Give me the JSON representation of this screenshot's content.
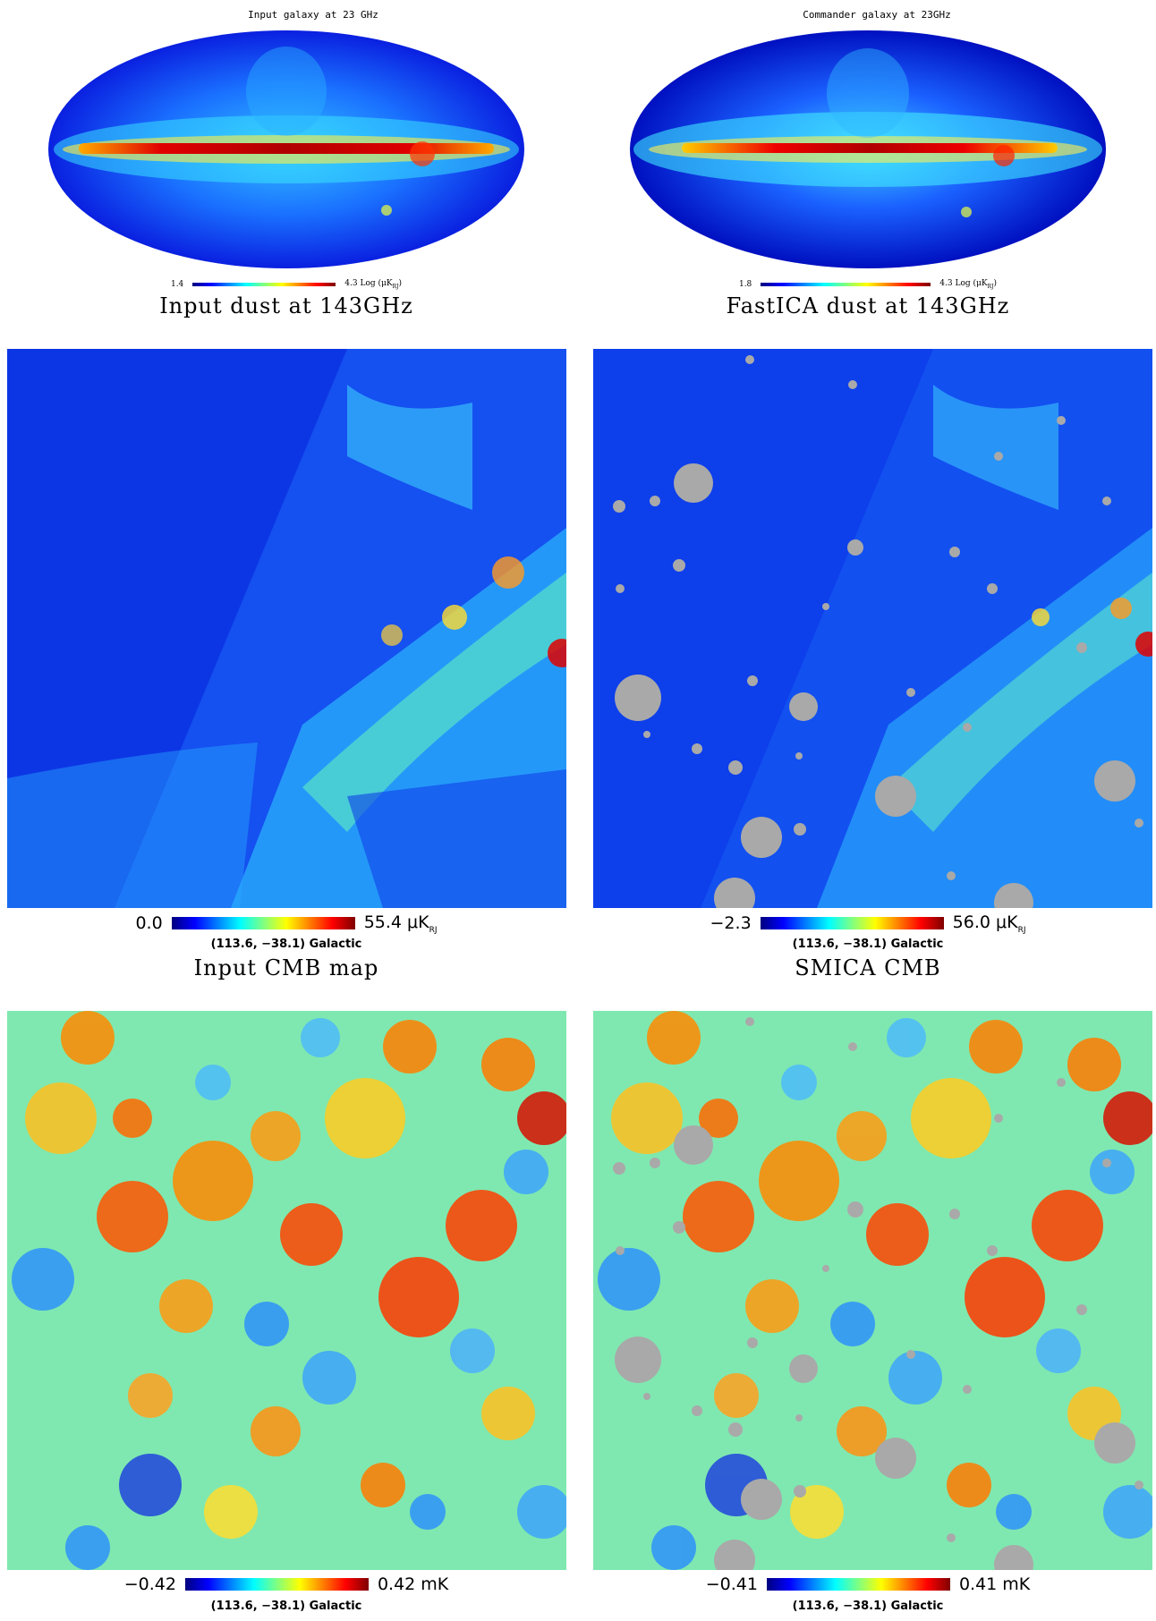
{
  "panels": {
    "top_left": {
      "title": "Input galaxy at 23 GHz",
      "cbar_min": "1.4",
      "cbar_max": "4.3 Log (μK",
      "cbar_unit_sub": "RJ",
      "cbar_tail": ")",
      "caption": "Input dust at 143GHz"
    },
    "top_right": {
      "title": "Commander galaxy at 23GHz",
      "cbar_min": "1.8",
      "cbar_max": "4.3 Log (μK",
      "cbar_unit_sub": "RJ",
      "cbar_tail": ")",
      "caption": "FastICA dust at 143GHz"
    },
    "mid_left": {
      "cbar_min": "0.0",
      "cbar_max": "55.4 μK",
      "cbar_unit_sub": "RJ",
      "coords": "(113.6, −38.1) Galactic",
      "caption": "Input CMB map"
    },
    "mid_right": {
      "cbar_min": "−2.3",
      "cbar_max": "56.0 μK",
      "cbar_unit_sub": "RJ",
      "coords": "(113.6, −38.1) Galactic",
      "caption": "SMICA CMB"
    },
    "bot_left": {
      "cbar_min": "−0.42",
      "cbar_max": "0.42 mK",
      "coords": "(113.6, −38.1) Galactic"
    },
    "bot_right": {
      "cbar_min": "−0.41",
      "cbar_max": "0.41 mK",
      "coords": "(113.6, −38.1) Galactic"
    }
  },
  "colormap": [
    "#00007f",
    "#0000ff",
    "#0080ff",
    "#00ffff",
    "#80ff80",
    "#ffff00",
    "#ff8000",
    "#ff0000",
    "#7f0000"
  ],
  "mask_color": "#a9a9a9"
}
